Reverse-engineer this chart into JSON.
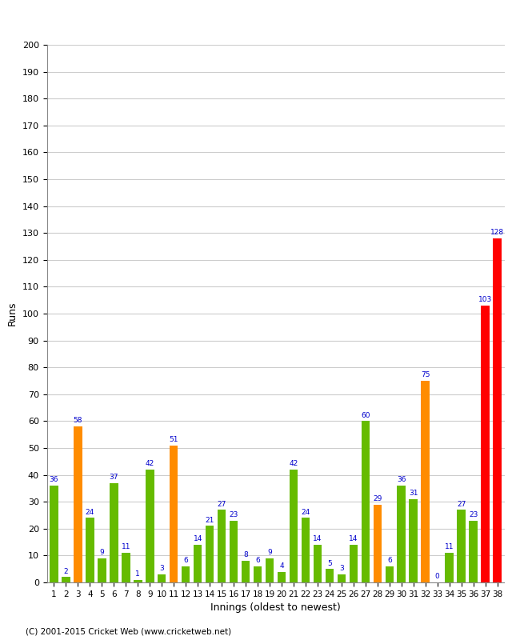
{
  "xlabel": "Innings (oldest to newest)",
  "ylabel": "Runs",
  "ylim": [
    0,
    200
  ],
  "yticks": [
    0,
    10,
    20,
    30,
    40,
    50,
    60,
    70,
    80,
    90,
    100,
    110,
    120,
    130,
    140,
    150,
    160,
    170,
    180,
    190,
    200
  ],
  "innings": [
    1,
    2,
    3,
    4,
    5,
    6,
    7,
    8,
    9,
    10,
    11,
    12,
    13,
    14,
    15,
    16,
    17,
    18,
    19,
    20,
    21,
    22,
    23,
    24,
    25,
    26,
    27,
    28,
    29,
    30,
    31,
    32,
    33,
    34,
    35,
    36,
    37,
    38
  ],
  "values": [
    36,
    2,
    58,
    24,
    9,
    37,
    11,
    1,
    42,
    3,
    51,
    6,
    14,
    21,
    27,
    23,
    8,
    6,
    9,
    4,
    42,
    24,
    14,
    5,
    3,
    14,
    60,
    29,
    6,
    36,
    31,
    75,
    0,
    11,
    27,
    23,
    103,
    128
  ],
  "colors": [
    "#66bb00",
    "#66bb00",
    "#ff8c00",
    "#66bb00",
    "#66bb00",
    "#66bb00",
    "#66bb00",
    "#66bb00",
    "#66bb00",
    "#66bb00",
    "#ff8c00",
    "#66bb00",
    "#66bb00",
    "#66bb00",
    "#66bb00",
    "#66bb00",
    "#66bb00",
    "#66bb00",
    "#66bb00",
    "#66bb00",
    "#66bb00",
    "#66bb00",
    "#66bb00",
    "#66bb00",
    "#66bb00",
    "#66bb00",
    "#66bb00",
    "#ff8c00",
    "#66bb00",
    "#66bb00",
    "#66bb00",
    "#ff8c00",
    "#66bb00",
    "#66bb00",
    "#66bb00",
    "#66bb00",
    "#ff0000",
    "#ff0000"
  ],
  "label_color": "#0000cc",
  "background_color": "#ffffff",
  "plot_bg_color": "#ffffff",
  "grid_color": "#cccccc",
  "footer": "(C) 2001-2015 Cricket Web (www.cricketweb.net)"
}
